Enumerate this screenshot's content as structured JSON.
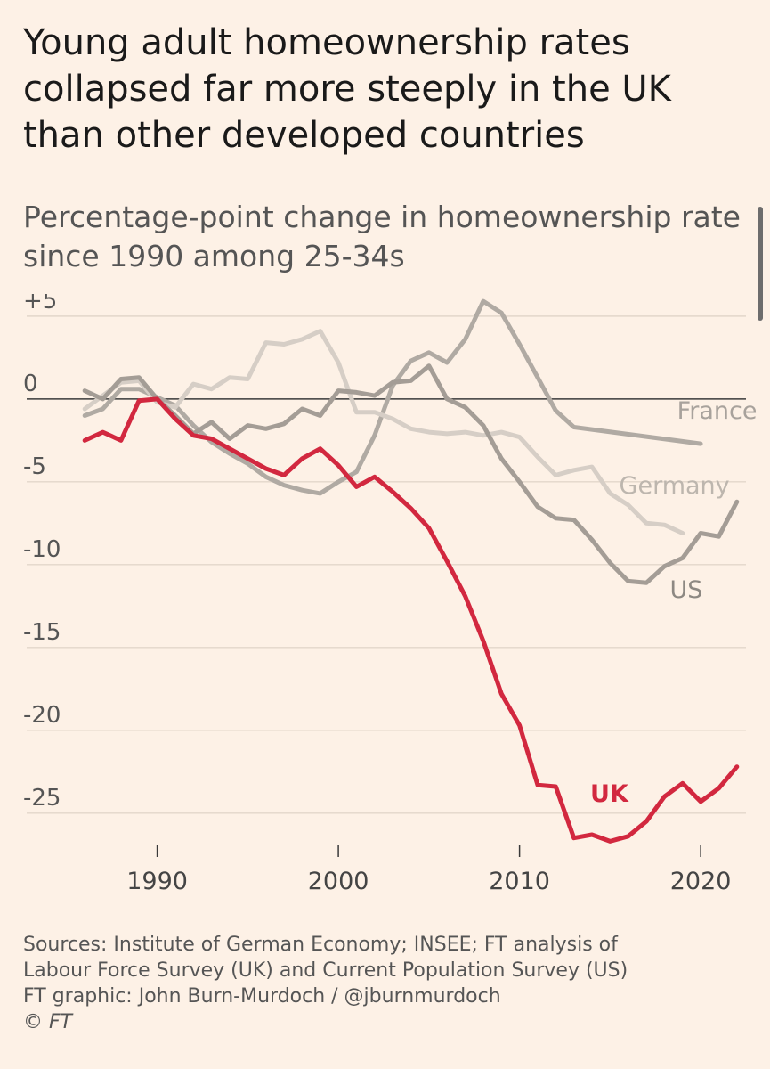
{
  "title": "Young adult homeownership rates collapsed far more steeply in the UK than other developed countries",
  "subtitle": "Percentage-point change in homeownership rate since 1990 among 25-34s",
  "footer": {
    "sources": "Sources: Institute of German Economy; INSEE; FT analysis of",
    "sources_line2": "Labour Force Survey (UK) and Current Population Survey (US)",
    "graphic": "FT graphic: John Burn-Murdoch / @jburnmurdoch",
    "copyright": "© FT"
  },
  "chart_data": {
    "type": "line",
    "title": "Young adult homeownership rates collapsed far more steeply in the UK than other developed countries",
    "subtitle": "Percentage-point change in homeownership rate since 1990 among 25-34s",
    "xlabel": "",
    "ylabel": "",
    "xlim": [
      1985.5,
      2022.5
    ],
    "ylim": [
      -27,
      5.8
    ],
    "xticks": [
      1990,
      2000,
      2010,
      2020
    ],
    "yticks": [
      5,
      0,
      -5,
      -10,
      -15,
      -20,
      -25
    ],
    "ytick_labels": [
      "+5",
      "0",
      "-5",
      "-10",
      "-15",
      "-20",
      "-25"
    ],
    "grid": true,
    "legend": "direct labels at line ends",
    "series": [
      {
        "name": "France",
        "color": "#b0aaa3",
        "x": [
          1986,
          1987,
          1988,
          1989,
          1990,
          1991,
          1992,
          1993,
          1994,
          1995,
          1996,
          1997,
          1998,
          1999,
          2000,
          2001,
          2002,
          2003,
          2004,
          2005,
          2006,
          2007,
          2008,
          2009,
          2010,
          2011,
          2012,
          2013,
          2020
        ],
        "y": [
          -1.0,
          -0.6,
          0.6,
          0.6,
          0.1,
          -0.4,
          -1.6,
          -2.6,
          -3.3,
          -3.9,
          -4.7,
          -5.2,
          -5.5,
          -5.7,
          -5.0,
          -4.4,
          -2.2,
          0.8,
          2.3,
          2.8,
          2.2,
          3.6,
          5.9,
          5.2,
          3.3,
          1.3,
          -0.7,
          -1.7,
          -2.7
        ]
      },
      {
        "name": "Germany",
        "color": "#d6cec6",
        "x": [
          1986,
          1987,
          1988,
          1989,
          1990,
          1991,
          1992,
          1993,
          1994,
          1995,
          1996,
          1997,
          1998,
          1999,
          2000,
          2001,
          2002,
          2003,
          2004,
          2005,
          2006,
          2007,
          2008,
          2009,
          2010,
          2011,
          2012,
          2013,
          2014,
          2015,
          2016,
          2017,
          2018,
          2019
        ],
        "y": [
          -0.6,
          0.2,
          1.0,
          1.1,
          -0.2,
          -0.5,
          0.9,
          0.6,
          1.3,
          1.2,
          3.4,
          3.3,
          3.6,
          4.1,
          2.2,
          -0.8,
          -0.8,
          -1.2,
          -1.8,
          -2.0,
          -2.1,
          -2.0,
          -2.2,
          -2.0,
          -2.3,
          -3.5,
          -4.6,
          -4.3,
          -4.1,
          -5.7,
          -6.4,
          -7.5,
          -7.6,
          -8.1
        ]
      },
      {
        "name": "US",
        "color": "#a49d96",
        "x": [
          1986,
          1987,
          1988,
          1989,
          1990,
          1991,
          1992,
          1993,
          1994,
          1995,
          1996,
          1997,
          1998,
          1999,
          2000,
          2001,
          2002,
          2003,
          2004,
          2005,
          2006,
          2007,
          2008,
          2009,
          2010,
          2011,
          2012,
          2013,
          2014,
          2015,
          2016,
          2017,
          2018,
          2019,
          2020,
          2021,
          2022
        ],
        "y": [
          0.5,
          0.0,
          1.2,
          1.3,
          0.0,
          -1.0,
          -2.1,
          -1.4,
          -2.4,
          -1.6,
          -1.8,
          -1.5,
          -0.6,
          -1.0,
          0.5,
          0.4,
          0.2,
          1.0,
          1.1,
          2.0,
          0.0,
          -0.5,
          -1.6,
          -3.6,
          -5.0,
          -6.5,
          -7.2,
          -7.3,
          -8.5,
          -9.9,
          -11.0,
          -11.1,
          -10.1,
          -9.6,
          -8.1,
          -8.3,
          -6.2
        ]
      },
      {
        "name": "UK",
        "color": "#d2283f",
        "x": [
          1986,
          1987,
          1988,
          1989,
          1990,
          1991,
          1992,
          1993,
          1994,
          1995,
          1996,
          1997,
          1998,
          1999,
          2000,
          2001,
          2002,
          2003,
          2004,
          2005,
          2006,
          2007,
          2008,
          2009,
          2010,
          2011,
          2012,
          2013,
          2014,
          2015,
          2016,
          2017,
          2018,
          2019,
          2020,
          2021,
          2022
        ],
        "y": [
          -2.5,
          -2.0,
          -2.5,
          -0.1,
          0.0,
          -1.2,
          -2.2,
          -2.4,
          -3.0,
          -3.6,
          -4.2,
          -4.6,
          -3.6,
          -3.0,
          -4.0,
          -5.3,
          -4.7,
          -5.6,
          -6.6,
          -7.8,
          -9.8,
          -11.9,
          -14.6,
          -17.8,
          -19.7,
          -23.3,
          -23.4,
          -26.5,
          -26.3,
          -26.7,
          -26.4,
          -25.5,
          -24.0,
          -23.2,
          -24.3,
          -23.5,
          -22.2
        ]
      }
    ],
    "labels": [
      {
        "text": "France",
        "x": 2018.7,
        "y": -1.2,
        "color": "#a8a29c"
      },
      {
        "text": "Germany",
        "x": 2015.5,
        "y": -5.7,
        "color": "#bdb6ae"
      },
      {
        "text": "US",
        "x": 2018.3,
        "y": -12.0,
        "color": "#8d8882"
      },
      {
        "text": "UK",
        "x": 2013.9,
        "y": -24.3,
        "color": "#d2283f"
      }
    ]
  }
}
